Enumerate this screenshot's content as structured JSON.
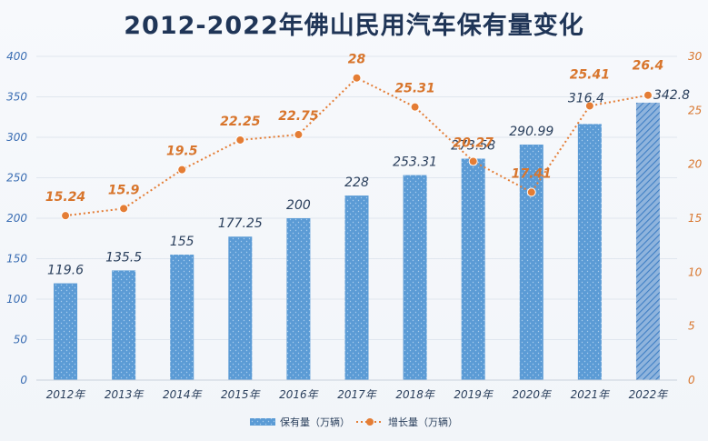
{
  "chart_data": {
    "type": "bar",
    "title": "2012-2022年佛山民用汽车保有量变化",
    "categories": [
      "2012年",
      "2013年",
      "2014年",
      "2015年",
      "2016年",
      "2017年",
      "2018年",
      "2019年",
      "2020年",
      "2021年",
      "2022年"
    ],
    "series": [
      {
        "name": "保有量（万辆）",
        "type": "bar",
        "axis": "left",
        "values": [
          119.6,
          135.5,
          155,
          177.25,
          200,
          228,
          253.31,
          273.58,
          290.99,
          316.4,
          342.8
        ],
        "labels": [
          "119.6",
          "135.5",
          "155",
          "177.25",
          "200",
          "228",
          "253.31",
          "273.58",
          "290.99",
          "316.4",
          "342.8"
        ],
        "color": "#5b9bd5",
        "last_bar_hatched": true
      },
      {
        "name": "增长量（万辆）",
        "type": "line",
        "axis": "right",
        "values": [
          15.24,
          15.9,
          19.5,
          22.25,
          22.75,
          28,
          25.31,
          20.27,
          17.41,
          25.41,
          26.4
        ],
        "labels": [
          "15.24",
          "15.9",
          "19.5",
          "22.25",
          "22.75",
          "28",
          "25.31",
          "20.27",
          "17.41",
          "25.41",
          "26.4"
        ],
        "color": "#e47d35",
        "line_style": "dotted"
      }
    ],
    "y_left": {
      "min": 0,
      "max": 400,
      "ticks": [
        "0",
        "50",
        "100",
        "150",
        "200",
        "250",
        "300",
        "350",
        "400"
      ]
    },
    "y_right": {
      "min": 0,
      "max": 30,
      "ticks": [
        "0",
        "5",
        "10",
        "15",
        "20",
        "25",
        "30"
      ]
    },
    "grid": true,
    "legend": "bottom-center"
  }
}
